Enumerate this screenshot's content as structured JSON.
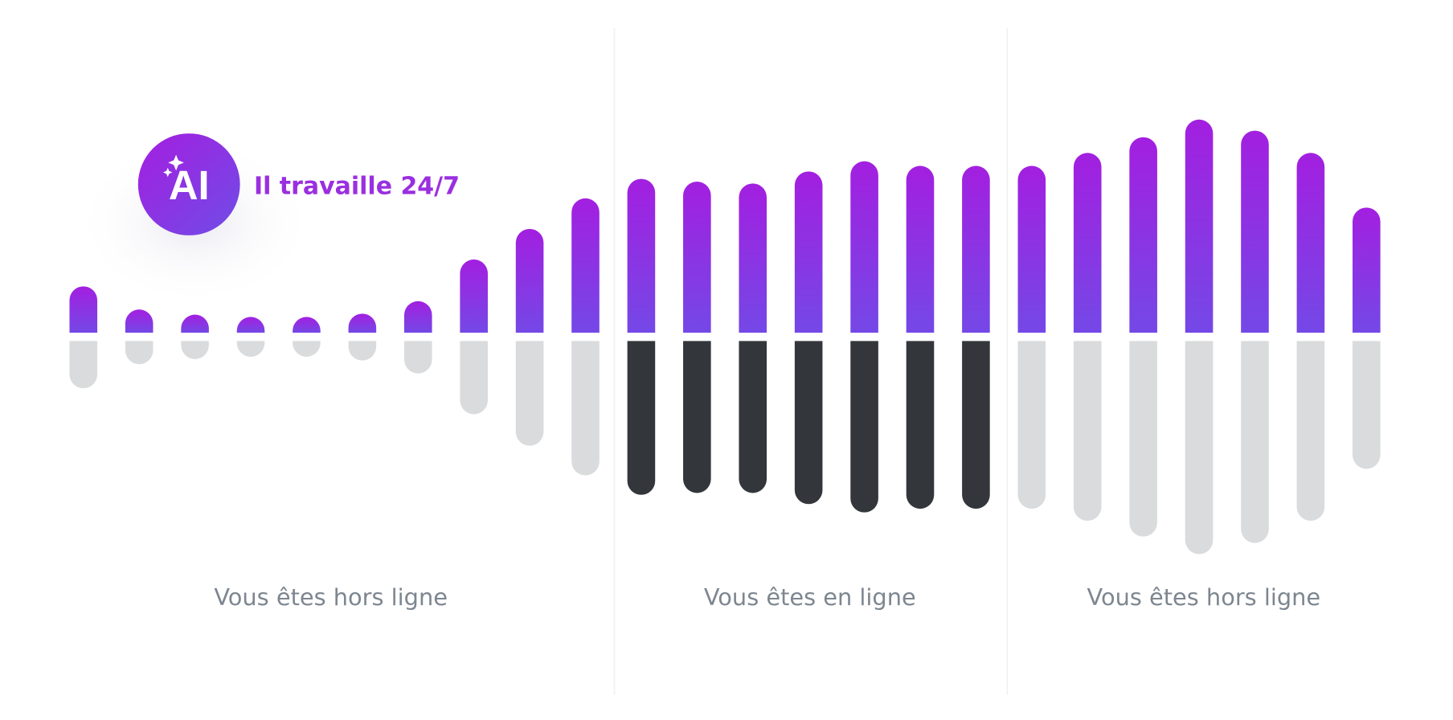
{
  "badge": {
    "icon_text": "AI",
    "tagline": "Il travaille 24/7"
  },
  "panels": [
    {
      "label": "Vous êtes hors ligne"
    },
    {
      "label": "Vous êtes en ligne"
    },
    {
      "label": "Vous êtes hors ligne"
    }
  ]
}
